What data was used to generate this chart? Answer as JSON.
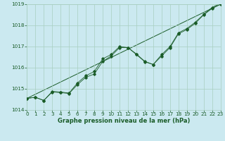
{
  "xlabel": "Graphe pression niveau de la mer (hPa)",
  "ylim": [
    1014,
    1019
  ],
  "xlim": [
    0,
    23
  ],
  "yticks": [
    1014,
    1015,
    1016,
    1017,
    1018,
    1019
  ],
  "xticks": [
    0,
    1,
    2,
    3,
    4,
    5,
    6,
    7,
    8,
    9,
    10,
    11,
    12,
    13,
    14,
    15,
    16,
    17,
    18,
    19,
    20,
    21,
    22,
    23
  ],
  "background_color": "#cbe9f0",
  "grid_color": "#a8cfc0",
  "line_color": "#1a5c28",
  "series1_y": [
    1014.55,
    1014.6,
    1014.45,
    1014.85,
    1014.82,
    1014.78,
    1015.2,
    1015.55,
    1015.7,
    1016.3,
    1016.55,
    1016.95,
    1016.95,
    1016.65,
    1016.3,
    1016.15,
    1016.55,
    1016.95,
    1017.6,
    1017.8,
    1018.1,
    1018.5,
    1018.8,
    1019.0
  ],
  "series2_y": [
    1014.55,
    1014.6,
    1014.45,
    1014.88,
    1014.85,
    1014.8,
    1015.28,
    1015.62,
    1015.82,
    1016.42,
    1016.62,
    1017.0,
    1016.95,
    1016.62,
    1016.28,
    1016.15,
    1016.62,
    1017.0,
    1017.65,
    1017.85,
    1018.15,
    1018.52,
    1018.85,
    1019.05
  ],
  "trend_x": [
    0,
    23
  ],
  "trend_y": [
    1014.55,
    1019.0
  ],
  "font_color": "#1a5c28",
  "tick_fontsize": 5.2,
  "label_fontsize": 6.0
}
